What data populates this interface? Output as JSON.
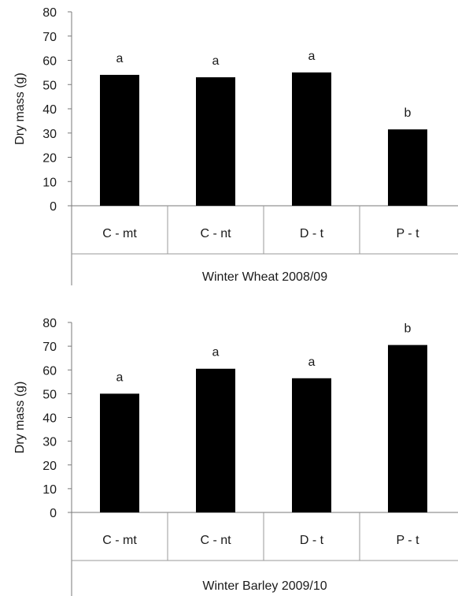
{
  "chart_data": [
    {
      "type": "bar",
      "ylabel": "Dry mass (g)",
      "ylim": [
        0,
        80
      ],
      "yticks": [
        0,
        10,
        20,
        30,
        40,
        50,
        60,
        70,
        80
      ],
      "categories": [
        "C - mt",
        "C - nt",
        "D - t",
        "P - t"
      ],
      "values": [
        54,
        53,
        55,
        31.5
      ],
      "letters": [
        "a",
        "a",
        "a",
        "b"
      ],
      "group_label": "Winter Wheat 2008/09",
      "bar_color": "#000000",
      "grid": false
    },
    {
      "type": "bar",
      "ylabel": "Dry mass (g)",
      "ylim": [
        0,
        80
      ],
      "yticks": [
        0,
        10,
        20,
        30,
        40,
        50,
        60,
        70,
        80
      ],
      "categories": [
        "C - mt",
        "C - nt",
        "D - t",
        "P - t"
      ],
      "values": [
        50,
        60.5,
        56.5,
        70.5
      ],
      "letters": [
        "a",
        "a",
        "a",
        "b"
      ],
      "group_label": "Winter Barley 2009/10",
      "bar_color": "#000000",
      "grid": false
    }
  ]
}
